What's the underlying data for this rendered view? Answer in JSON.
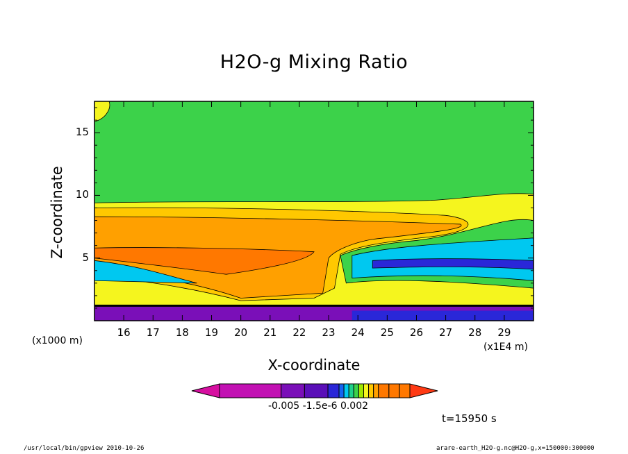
{
  "chart_data": {
    "type": "heatmap",
    "title": "H2O-g Mixing Ratio",
    "xlabel": "X-coordinate",
    "ylabel": "Z-coordinate",
    "x_unit_label": "(x1E4 m)",
    "y_unit_label": "(x1000 m)",
    "x_ticks": [
      "16",
      "17",
      "18",
      "19",
      "20",
      "21",
      "22",
      "23",
      "24",
      "25",
      "26",
      "27",
      "28",
      "29"
    ],
    "y_ticks": [
      "5",
      "10",
      "15"
    ],
    "xlim": [
      15,
      30
    ],
    "ylim": [
      0,
      17.5
    ],
    "colorbar": {
      "labels": [
        "-0.005",
        "-1.5e-6",
        "0.002"
      ],
      "colors": [
        "#d60fa0",
        "#c211b3",
        "#7a0fb8",
        "#5a0fb8",
        "#2a27d8",
        "#1464f0",
        "#00c8f0",
        "#1fd08a",
        "#3cd24a",
        "#a0e600",
        "#f5f51e",
        "#ffc800",
        "#ffa000",
        "#ff7800",
        "#ff3a14"
      ]
    },
    "layers": [
      {
        "color": "#7a0fb8",
        "z_range": [
          0,
          1.2
        ]
      },
      {
        "color": "#3cd24a",
        "z_range": [
          1.2,
          17.5
        ]
      },
      {
        "color": "#f5f51e",
        "z_range": [
          1.2,
          9.5
        ]
      },
      {
        "color": "#ffc800",
        "z_range": [
          2.5,
          9.0
        ]
      },
      {
        "color": "#ffa000",
        "z_range": [
          3.0,
          8.3
        ]
      },
      {
        "color": "#ff7800",
        "z_range": [
          3.5,
          5.8
        ]
      },
      {
        "color": "#00c8f0",
        "z_range": [
          3.0,
          6.5
        ]
      },
      {
        "color": "#2a27d8",
        "z_range": [
          4.0,
          5.0
        ]
      }
    ],
    "time_label": "t=15950 s"
  },
  "footer": {
    "left": "/usr/local/bin/gpview  2010-10-26",
    "right": "arare-earth_H2O-g.nc@H2O-g,x=150000:300000"
  }
}
